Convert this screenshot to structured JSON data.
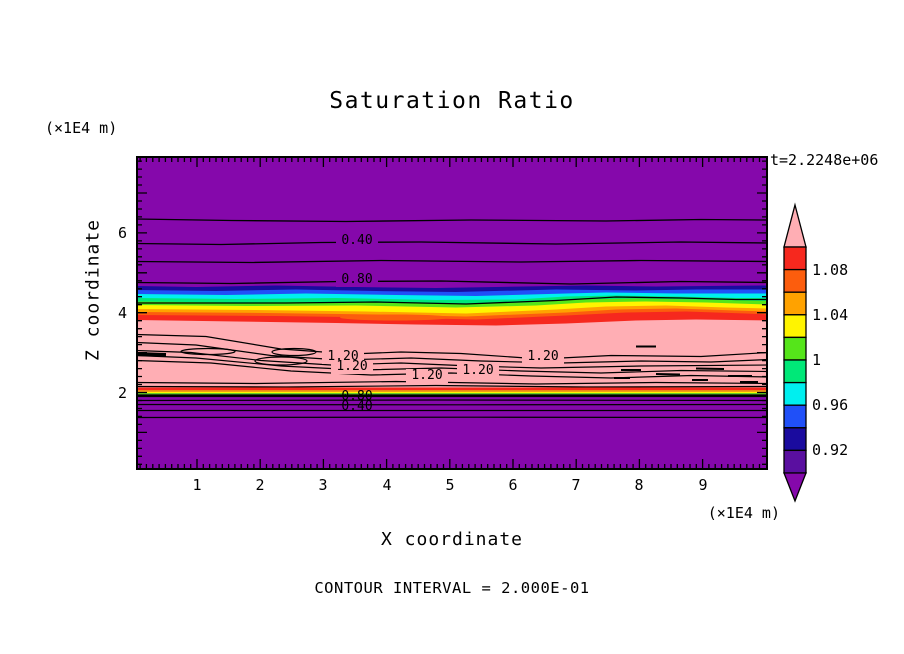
{
  "header": {
    "title": "Saturation Ratio",
    "timestamp": "t=2.2248e+06"
  },
  "x_axis": {
    "label": "X coordinate",
    "unit": "(×1E4 m)",
    "ticks": [
      "1",
      "2",
      "3",
      "4",
      "5",
      "6",
      "7",
      "8",
      "9"
    ]
  },
  "z_axis": {
    "label": "Z coordinate",
    "unit": "(×1E4 m)",
    "ticks": [
      "6",
      "4",
      "2"
    ]
  },
  "footer": {
    "contour_note": "CONTOUR INTERVAL = 2.000E-01"
  },
  "contour_labels": {
    "c040": "0.40",
    "c080": "0.80",
    "c120": "1.20"
  },
  "colors": {
    "purple": "#8508AB",
    "pink": "#FFAEB4",
    "navy": "#1A0B9E",
    "blue": "#2050F8",
    "cyan": "#00EFEF",
    "green": "#00E878",
    "chartreuse": "#55E51A",
    "yellow": "#FFF400",
    "orange": "#FFA200",
    "orangered": "#FC5D0D",
    "red": "#F6281E",
    "black": "#000000"
  },
  "colorbar": {
    "labels": [
      "1.08",
      "1.04",
      "1",
      "0.96",
      "0.92"
    ],
    "segment_colors": [
      "#F6281E",
      "#FC5D0D",
      "#FFA200",
      "#FFF400",
      "#55E51A",
      "#00E878",
      "#00EFEF",
      "#2050F8",
      "#1A0B9E",
      "#5A0FA0"
    ],
    "arrow_top_color": "#FFAEB4",
    "arrow_bottom_color": "#8508AB"
  },
  "chart_data": {
    "type": "heatmap",
    "title": "Saturation Ratio",
    "xlabel": "X coordinate (×1E4 m)",
    "ylabel": "Z coordinate (×1E4 m)",
    "time_annotation": "t=2.2248e+06",
    "x_range": [
      0,
      10
    ],
    "z_range": [
      0,
      7.9
    ],
    "contour_interval": 0.2,
    "contour_interval_note": "CONTOUR INTERVAL = 2.000E-01",
    "line_contour_labeled_values": [
      0.4,
      0.8,
      1.2
    ],
    "color_scale": {
      "boundary_values": [
        0.9,
        0.92,
        0.94,
        0.96,
        0.98,
        1.0,
        1.02,
        1.04,
        1.06,
        1.08,
        1.1
      ],
      "labeled_boundaries": [
        "1.08",
        "1.04",
        "1",
        "0.96",
        "0.92"
      ],
      "below_min": "purple (< 0.90)",
      "above_max": "pink (> 1.10)"
    },
    "upper_region_contours": [
      {
        "value": 0.2,
        "z": 6.35
      },
      {
        "value": 0.4,
        "z": 5.8
      },
      {
        "value": 0.6,
        "z": 5.3
      },
      {
        "value": 0.8,
        "z": 4.75
      }
    ],
    "lower_region_contours": [
      {
        "value": 0.8,
        "z": 1.81
      },
      {
        "value": 0.6,
        "z": 1.71
      },
      {
        "value": 0.4,
        "z": 1.56
      },
      {
        "value": 0.2,
        "z": 1.39
      }
    ],
    "vertical_structure": [
      {
        "z_from": 4.4,
        "z_to": 7.9,
        "saturation_ratio": "< 0.90",
        "appearance": "solid purple with horizontal 0.2–0.8 contour lines"
      },
      {
        "z_from": 4.0,
        "z_to": 4.4,
        "saturation_ratio": "0.90 → 1.10",
        "appearance": "wavy rainbow transition band (navy→blue→cyan→green→yellow→orange→red)"
      },
      {
        "z_from": 2.1,
        "z_to": 4.0,
        "saturation_ratio": "> 1.10 (≈ 1.2)",
        "appearance": "pink supersaturated region with many wavy 1.20 contour lines and closed loops"
      },
      {
        "z_from": 1.95,
        "z_to": 2.1,
        "saturation_ratio": "1.10 → 0.90",
        "appearance": "very thin compressed rainbow strip with thick contour cluster"
      },
      {
        "z_from": 0.0,
        "z_to": 1.95,
        "saturation_ratio": "< 0.90",
        "appearance": "solid purple with horizontal 0.8–0.2 contour lines"
      }
    ]
  }
}
